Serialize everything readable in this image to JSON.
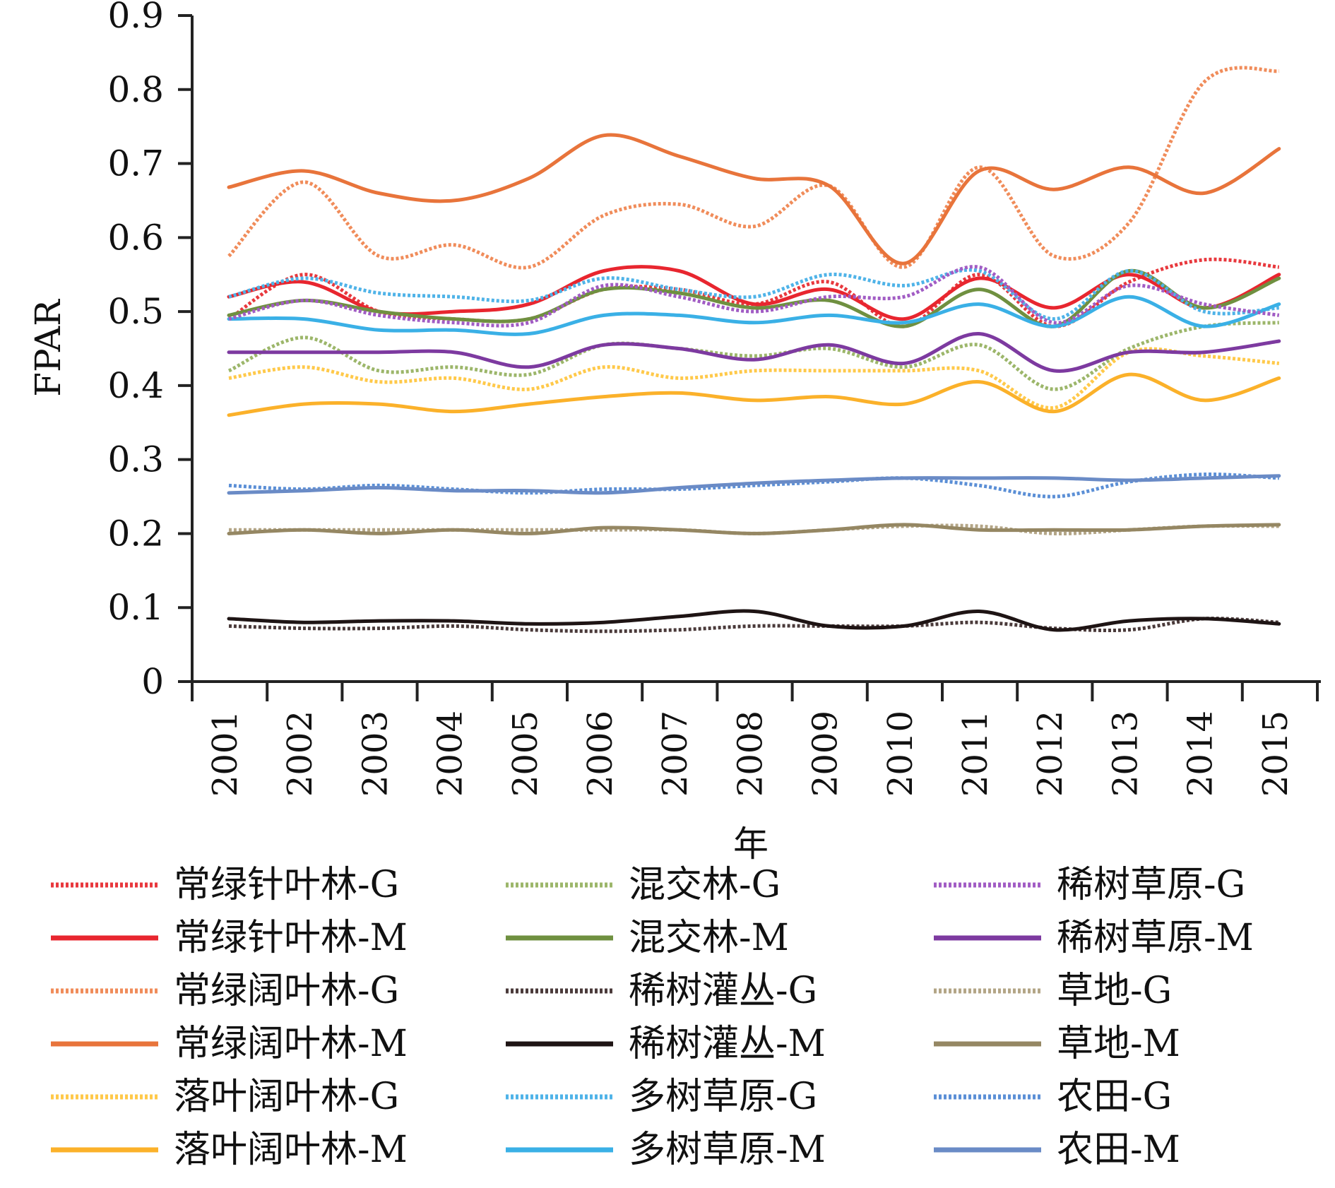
{
  "chart_data": {
    "type": "line",
    "title": "",
    "xlabel": "年",
    "ylabel": "FPAR",
    "ylim": [
      0,
      0.9
    ],
    "y_ticks": [
      "0",
      "0.1",
      "0.2",
      "0.3",
      "0.4",
      "0.5",
      "0.6",
      "0.7",
      "0.8",
      "0.9"
    ],
    "x": [
      "2001",
      "2002",
      "2003",
      "2004",
      "2005",
      "2006",
      "2007",
      "2008",
      "2009",
      "2010",
      "2011",
      "2012",
      "2013",
      "2014",
      "2015"
    ],
    "grid": false,
    "legend_position": "bottom",
    "series": [
      {
        "name": "常绿针叶林-G",
        "color": "#e8383d",
        "style": "dotted",
        "values": [
          0.49,
          0.55,
          0.5,
          0.49,
          0.49,
          0.53,
          0.53,
          0.51,
          0.54,
          0.48,
          0.55,
          0.48,
          0.54,
          0.57,
          0.56
        ]
      },
      {
        "name": "常绿针叶林-M",
        "color": "#e8262f",
        "style": "solid",
        "values": [
          0.52,
          0.54,
          0.5,
          0.5,
          0.51,
          0.555,
          0.555,
          0.51,
          0.53,
          0.49,
          0.545,
          0.505,
          0.55,
          0.505,
          0.55
        ]
      },
      {
        "name": "常绿阔叶林-G",
        "color": "#f08c5a",
        "style": "dotted",
        "values": [
          0.575,
          0.675,
          0.575,
          0.59,
          0.56,
          0.63,
          0.645,
          0.615,
          0.67,
          0.56,
          0.695,
          0.575,
          0.62,
          0.81,
          0.825
        ]
      },
      {
        "name": "常绿阔叶林-M",
        "color": "#e8743b",
        "style": "solid",
        "values": [
          0.668,
          0.69,
          0.66,
          0.65,
          0.68,
          0.738,
          0.71,
          0.68,
          0.67,
          0.565,
          0.69,
          0.665,
          0.695,
          0.66,
          0.72
        ]
      },
      {
        "name": "落叶阔叶林-G",
        "color": "#ffc94a",
        "style": "dotted",
        "values": [
          0.41,
          0.425,
          0.405,
          0.41,
          0.395,
          0.425,
          0.41,
          0.42,
          0.42,
          0.42,
          0.42,
          0.37,
          0.445,
          0.44,
          0.43
        ]
      },
      {
        "name": "落叶阔叶林-M",
        "color": "#fbb12a",
        "style": "solid",
        "values": [
          0.36,
          0.375,
          0.375,
          0.365,
          0.375,
          0.385,
          0.39,
          0.38,
          0.385,
          0.375,
          0.405,
          0.365,
          0.415,
          0.38,
          0.41
        ]
      },
      {
        "name": "混交林-G",
        "color": "#9cb66a",
        "style": "dotted",
        "values": [
          0.42,
          0.465,
          0.42,
          0.425,
          0.415,
          0.455,
          0.45,
          0.44,
          0.45,
          0.425,
          0.455,
          0.395,
          0.45,
          0.48,
          0.485
        ]
      },
      {
        "name": "混交林-M",
        "color": "#6f9040",
        "style": "solid",
        "values": [
          0.495,
          0.515,
          0.5,
          0.49,
          0.49,
          0.53,
          0.525,
          0.505,
          0.515,
          0.48,
          0.53,
          0.48,
          0.555,
          0.505,
          0.545
        ]
      },
      {
        "name": "稀树灌丛-G",
        "color": "#4a3a3a",
        "style": "dotted",
        "values": [
          0.075,
          0.072,
          0.072,
          0.075,
          0.07,
          0.068,
          0.07,
          0.075,
          0.075,
          0.075,
          0.08,
          0.072,
          0.07,
          0.085,
          0.08
        ]
      },
      {
        "name": "稀树灌丛-M",
        "color": "#1e1414",
        "style": "solid",
        "values": [
          0.085,
          0.08,
          0.082,
          0.082,
          0.078,
          0.08,
          0.088,
          0.095,
          0.075,
          0.075,
          0.095,
          0.07,
          0.082,
          0.085,
          0.078
        ]
      },
      {
        "name": "多树草原-G",
        "color": "#4fb3e8",
        "style": "dotted",
        "values": [
          0.52,
          0.545,
          0.525,
          0.52,
          0.515,
          0.545,
          0.53,
          0.52,
          0.55,
          0.535,
          0.555,
          0.49,
          0.555,
          0.5,
          0.505
        ]
      },
      {
        "name": "多树草原-M",
        "color": "#3ab0e6",
        "style": "solid",
        "values": [
          0.49,
          0.49,
          0.475,
          0.475,
          0.47,
          0.495,
          0.495,
          0.485,
          0.495,
          0.485,
          0.51,
          0.48,
          0.52,
          0.48,
          0.51
        ]
      },
      {
        "name": "稀树草原-G",
        "color": "#a15cc4",
        "style": "dotted",
        "values": [
          0.49,
          0.515,
          0.495,
          0.485,
          0.485,
          0.535,
          0.52,
          0.5,
          0.52,
          0.52,
          0.56,
          0.485,
          0.535,
          0.51,
          0.495
        ]
      },
      {
        "name": "稀树草原-M",
        "color": "#7d3aa0",
        "style": "solid",
        "values": [
          0.445,
          0.445,
          0.445,
          0.445,
          0.425,
          0.455,
          0.45,
          0.435,
          0.455,
          0.43,
          0.47,
          0.42,
          0.445,
          0.445,
          0.46
        ]
      },
      {
        "name": "草地-G",
        "color": "#b3a586",
        "style": "dotted",
        "values": [
          0.205,
          0.205,
          0.205,
          0.205,
          0.205,
          0.205,
          0.205,
          0.2,
          0.205,
          0.21,
          0.21,
          0.2,
          0.205,
          0.21,
          0.21
        ]
      },
      {
        "name": "草地-M",
        "color": "#958763",
        "style": "solid",
        "values": [
          0.2,
          0.205,
          0.2,
          0.205,
          0.2,
          0.208,
          0.205,
          0.2,
          0.205,
          0.212,
          0.205,
          0.205,
          0.205,
          0.21,
          0.212
        ]
      },
      {
        "name": "农田-G",
        "color": "#5b8fd6",
        "style": "dotted",
        "values": [
          0.265,
          0.26,
          0.265,
          0.26,
          0.255,
          0.26,
          0.26,
          0.265,
          0.27,
          0.275,
          0.265,
          0.25,
          0.27,
          0.28,
          0.275
        ]
      },
      {
        "name": "农田-M",
        "color": "#6a8bc6",
        "style": "solid",
        "values": [
          0.255,
          0.258,
          0.262,
          0.258,
          0.258,
          0.255,
          0.262,
          0.268,
          0.272,
          0.275,
          0.275,
          0.275,
          0.272,
          0.275,
          0.278
        ]
      }
    ]
  }
}
